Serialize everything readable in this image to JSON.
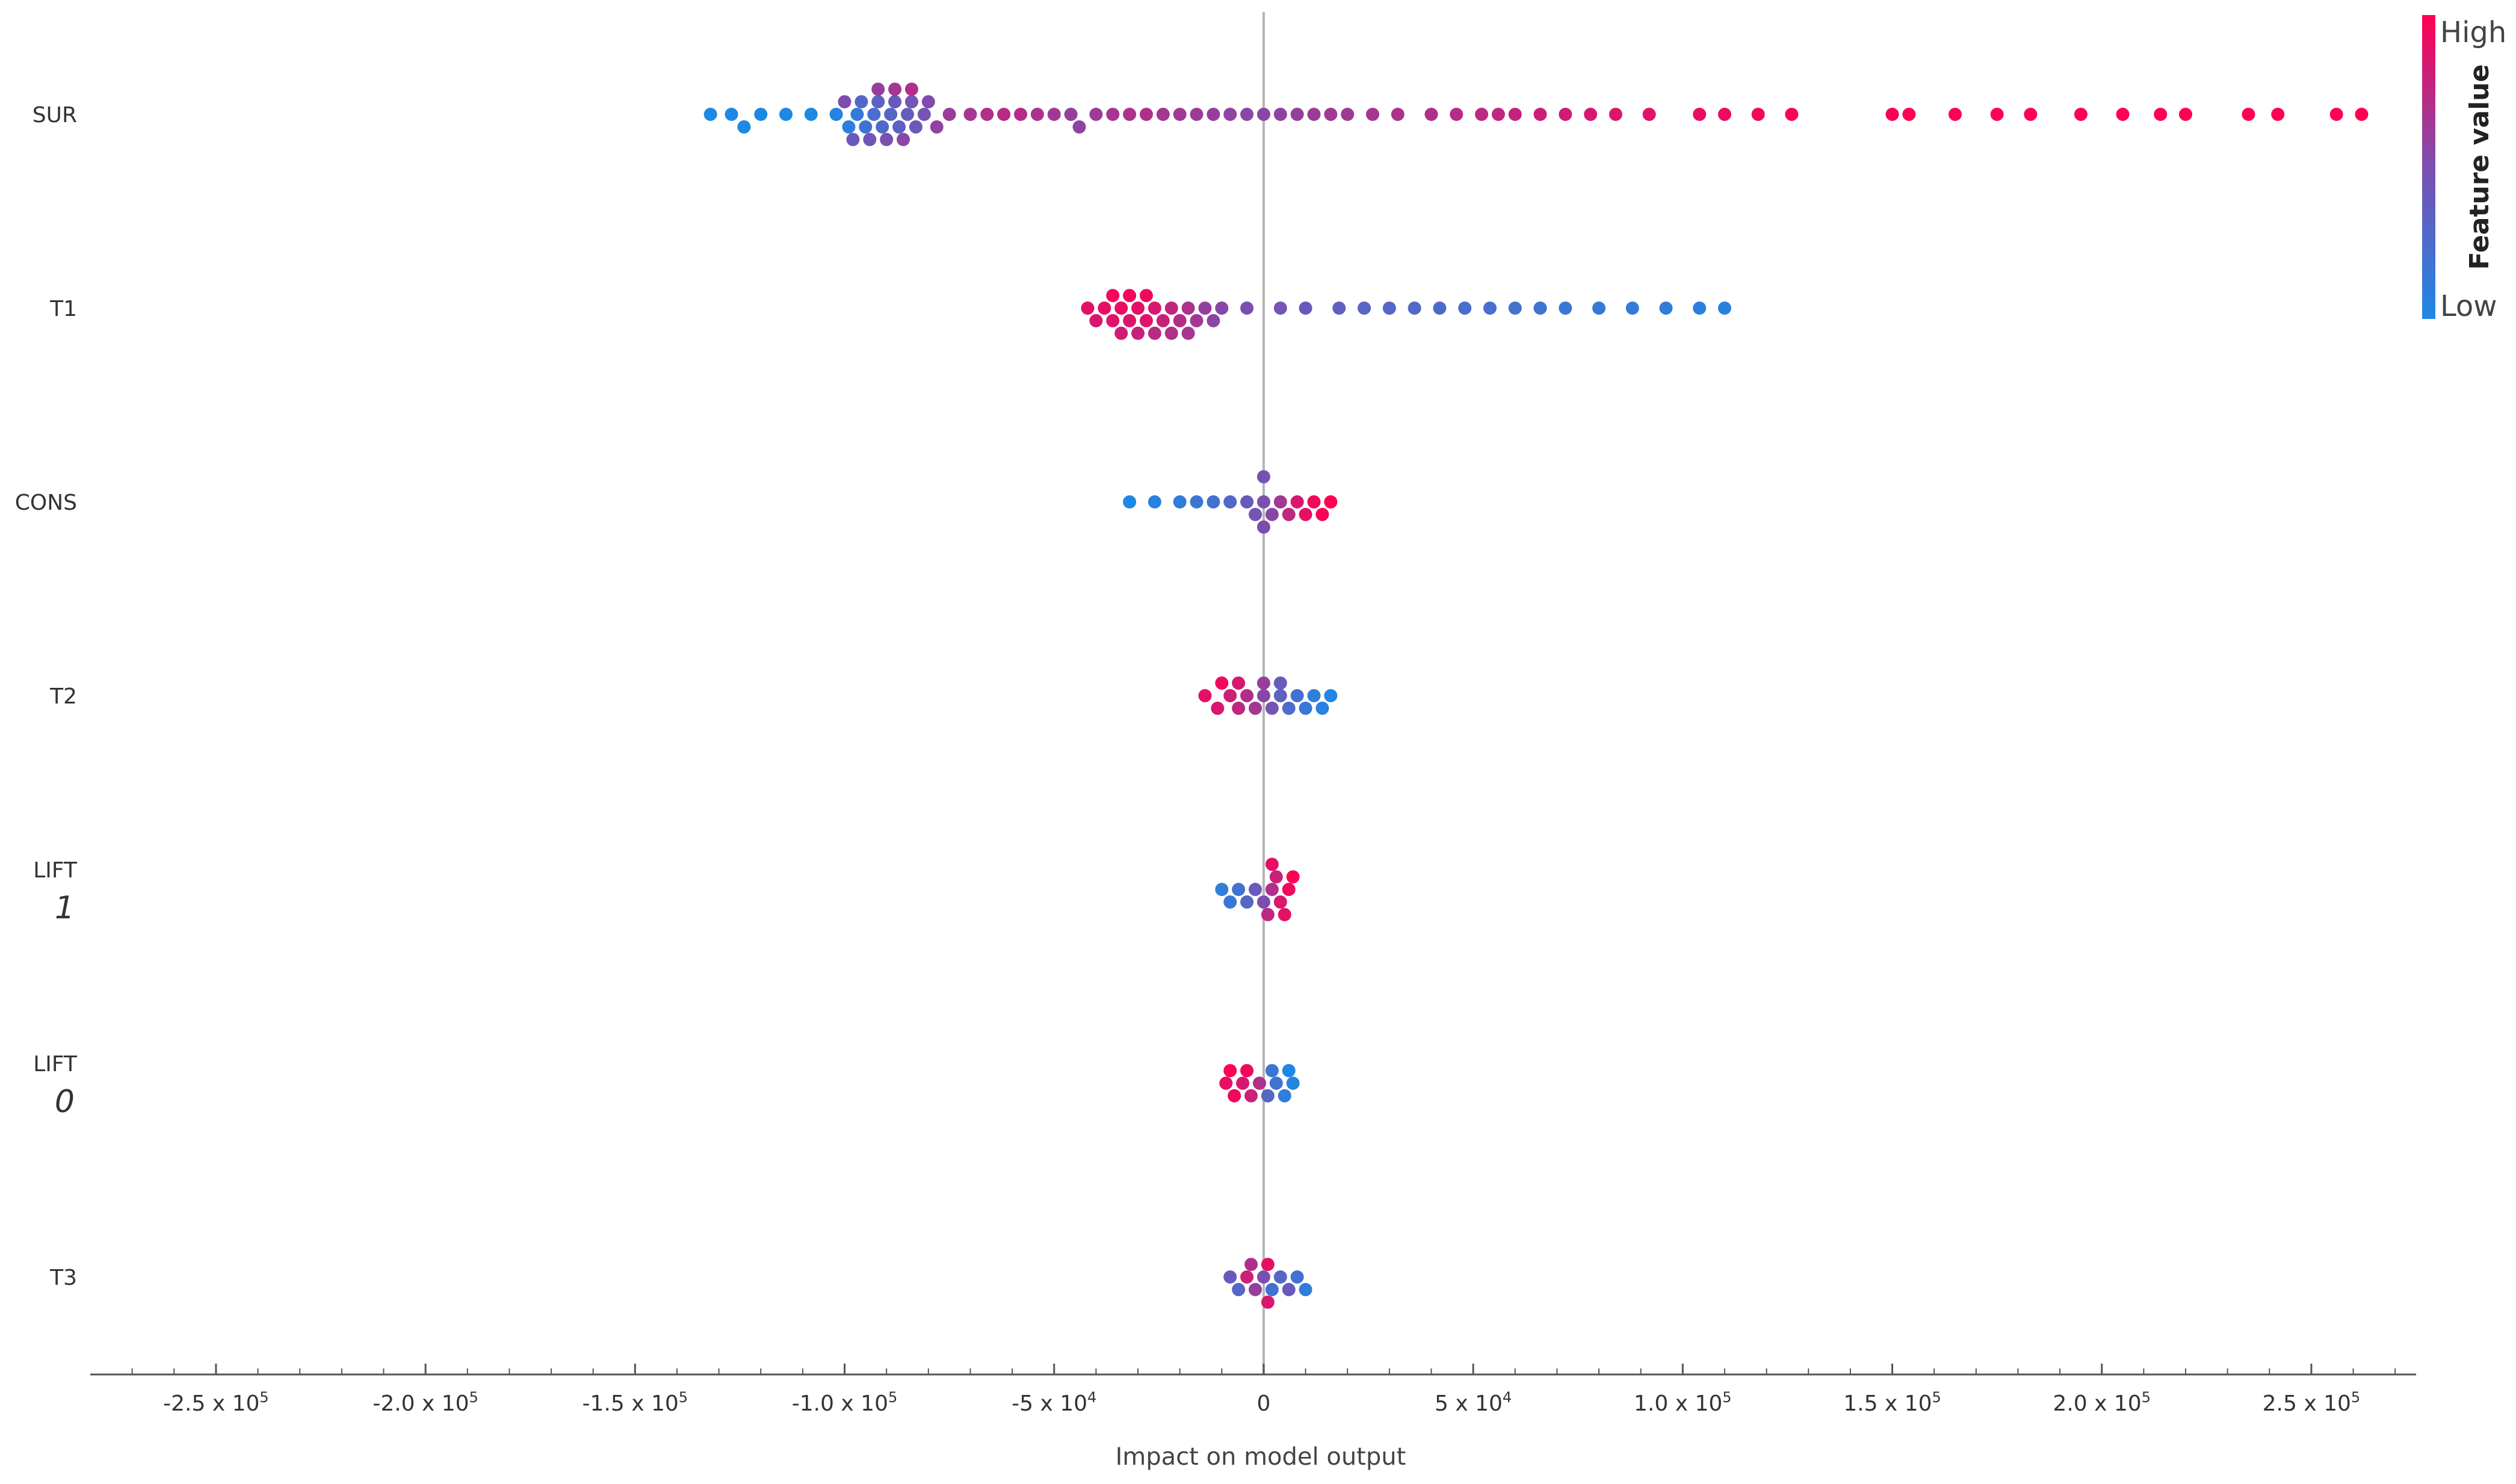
{
  "chart_data": {
    "type": "scatter",
    "subtype": "beeswarm",
    "title": "",
    "xlabel": "Impact on model output",
    "ylabel": "",
    "xlim": [
      -280000,
      275000
    ],
    "features": [
      "SUR",
      "T1",
      "CONS",
      "T2",
      "LIFT",
      "LIFT",
      "T3"
    ],
    "feature_sublabels": [
      "",
      "",
      "",
      "",
      "1",
      "0",
      ""
    ],
    "x_ticks": [
      {
        "value": -250000,
        "mantissa": "-2.5 x 10",
        "exp": "5"
      },
      {
        "value": -200000,
        "mantissa": "-2.0 x 10",
        "exp": "5"
      },
      {
        "value": -150000,
        "mantissa": "-1.5 x 10",
        "exp": "5"
      },
      {
        "value": -100000,
        "mantissa": "-1.0 x 10",
        "exp": "5"
      },
      {
        "value": -50000,
        "mantissa": "-5 x 10",
        "exp": "4"
      },
      {
        "value": 0,
        "mantissa": "0",
        "exp": ""
      },
      {
        "value": 50000,
        "mantissa": "5 x 10",
        "exp": "4"
      },
      {
        "value": 100000,
        "mantissa": "1.0 x 10",
        "exp": "5"
      },
      {
        "value": 150000,
        "mantissa": "1.5 x 10",
        "exp": "5"
      },
      {
        "value": 200000,
        "mantissa": "2.0 x 10",
        "exp": "5"
      },
      {
        "value": 250000,
        "mantissa": "2.5 x 10",
        "exp": "5"
      }
    ],
    "colorbar": {
      "label": "Feature value",
      "high_label": "High",
      "low_label": "Low",
      "low_color": "#1e88e5",
      "mid_color": "#7b4fb0",
      "high_color": "#ff0052"
    },
    "series": [
      {
        "feature_index": 0,
        "points": [
          [
            -132000,
            0.0
          ],
          [
            -127000,
            0.0
          ],
          [
            -124000,
            0.0
          ],
          [
            -120000,
            0.0
          ],
          [
            -114000,
            0.0
          ],
          [
            -108000,
            0.0
          ],
          [
            -102000,
            0.05
          ],
          [
            -99000,
            0.08
          ],
          [
            -97000,
            0.12
          ],
          [
            -95000,
            0.18
          ],
          [
            -93000,
            0.22
          ],
          [
            -91000,
            0.26
          ],
          [
            -89000,
            0.3
          ],
          [
            -87000,
            0.34
          ],
          [
            -85000,
            0.38
          ],
          [
            -83000,
            0.42
          ],
          [
            -81000,
            0.46
          ],
          [
            -96000,
            0.28
          ],
          [
            -92000,
            0.34
          ],
          [
            -88000,
            0.4
          ],
          [
            -84000,
            0.46
          ],
          [
            -80000,
            0.52
          ],
          [
            -94000,
            0.44
          ],
          [
            -90000,
            0.5
          ],
          [
            -86000,
            0.56
          ],
          [
            -98000,
            0.4
          ],
          [
            -100000,
            0.52
          ],
          [
            -92000,
            0.6
          ],
          [
            -88000,
            0.66
          ],
          [
            -84000,
            0.7
          ],
          [
            -78000,
            0.58
          ],
          [
            -75000,
            0.62
          ],
          [
            -70000,
            0.66
          ],
          [
            -66000,
            0.7
          ],
          [
            -62000,
            0.74
          ],
          [
            -58000,
            0.72
          ],
          [
            -54000,
            0.68
          ],
          [
            -50000,
            0.64
          ],
          [
            -46000,
            0.6
          ],
          [
            -44000,
            0.58
          ],
          [
            -40000,
            0.62
          ],
          [
            -36000,
            0.66
          ],
          [
            -32000,
            0.68
          ],
          [
            -28000,
            0.7
          ],
          [
            -24000,
            0.66
          ],
          [
            -20000,
            0.64
          ],
          [
            -16000,
            0.62
          ],
          [
            -12000,
            0.6
          ],
          [
            -8000,
            0.58
          ],
          [
            -4000,
            0.56
          ],
          [
            0,
            0.56
          ],
          [
            4000,
            0.58
          ],
          [
            8000,
            0.6
          ],
          [
            12000,
            0.62
          ],
          [
            16000,
            0.64
          ],
          [
            20000,
            0.64
          ],
          [
            26000,
            0.66
          ],
          [
            32000,
            0.68
          ],
          [
            40000,
            0.7
          ],
          [
            46000,
            0.72
          ],
          [
            52000,
            0.74
          ],
          [
            56000,
            0.76
          ],
          [
            60000,
            0.78
          ],
          [
            66000,
            0.8
          ],
          [
            72000,
            0.82
          ],
          [
            78000,
            0.84
          ],
          [
            84000,
            0.86
          ],
          [
            92000,
            0.88
          ],
          [
            104000,
            0.92
          ],
          [
            110000,
            0.93
          ],
          [
            118000,
            0.95
          ],
          [
            126000,
            0.97
          ],
          [
            150000,
            0.99
          ],
          [
            154000,
            1.0
          ],
          [
            165000,
            1.0
          ],
          [
            175000,
            1.0
          ],
          [
            183000,
            1.0
          ],
          [
            195000,
            1.0
          ],
          [
            205000,
            1.0
          ],
          [
            214000,
            1.0
          ],
          [
            220000,
            1.0
          ],
          [
            235000,
            1.0
          ],
          [
            242000,
            1.0
          ],
          [
            256000,
            1.0
          ],
          [
            262000,
            1.0
          ]
        ]
      },
      {
        "feature_index": 1,
        "points": [
          [
            -42000,
            0.9
          ],
          [
            -40000,
            0.85
          ],
          [
            -38000,
            0.9
          ],
          [
            -36000,
            0.88
          ],
          [
            -34000,
            0.92
          ],
          [
            -32000,
            0.86
          ],
          [
            -30000,
            0.9
          ],
          [
            -28000,
            0.88
          ],
          [
            -26000,
            0.84
          ],
          [
            -24000,
            0.8
          ],
          [
            -22000,
            0.76
          ],
          [
            -20000,
            0.72
          ],
          [
            -18000,
            0.68
          ],
          [
            -16000,
            0.64
          ],
          [
            -14000,
            0.6
          ],
          [
            -12000,
            0.56
          ],
          [
            -10000,
            0.54
          ],
          [
            -36000,
            0.96
          ],
          [
            -32000,
            0.95
          ],
          [
            -28000,
            0.94
          ],
          [
            -34000,
            0.82
          ],
          [
            -30000,
            0.78
          ],
          [
            -26000,
            0.74
          ],
          [
            -22000,
            0.7
          ],
          [
            -18000,
            0.66
          ],
          [
            -4000,
            0.5
          ],
          [
            4000,
            0.46
          ],
          [
            10000,
            0.4
          ],
          [
            18000,
            0.36
          ],
          [
            24000,
            0.32
          ],
          [
            30000,
            0.3
          ],
          [
            36000,
            0.28
          ],
          [
            42000,
            0.26
          ],
          [
            48000,
            0.24
          ],
          [
            54000,
            0.22
          ],
          [
            60000,
            0.2
          ],
          [
            66000,
            0.18
          ],
          [
            72000,
            0.16
          ],
          [
            80000,
            0.14
          ],
          [
            88000,
            0.12
          ],
          [
            96000,
            0.1
          ],
          [
            104000,
            0.08
          ],
          [
            110000,
            0.06
          ]
        ]
      },
      {
        "feature_index": 2,
        "points": [
          [
            -32000,
            0.0
          ],
          [
            -26000,
            0.05
          ],
          [
            -20000,
            0.1
          ],
          [
            -16000,
            0.15
          ],
          [
            -12000,
            0.2
          ],
          [
            -8000,
            0.3
          ],
          [
            -4000,
            0.4
          ],
          [
            -2000,
            0.45
          ],
          [
            0,
            0.5
          ],
          [
            0,
            0.52
          ],
          [
            0,
            0.48
          ],
          [
            2000,
            0.55
          ],
          [
            4000,
            0.65
          ],
          [
            6000,
            0.75
          ],
          [
            8000,
            0.85
          ],
          [
            10000,
            0.9
          ],
          [
            12000,
            0.95
          ],
          [
            14000,
            0.98
          ],
          [
            16000,
            1.0
          ]
        ]
      },
      {
        "feature_index": 3,
        "points": [
          [
            -14000,
            0.9
          ],
          [
            -11000,
            0.85
          ],
          [
            -8000,
            0.8
          ],
          [
            -6000,
            0.75
          ],
          [
            -4000,
            0.7
          ],
          [
            -2000,
            0.65
          ],
          [
            0,
            0.55
          ],
          [
            2000,
            0.45
          ],
          [
            4000,
            0.35
          ],
          [
            6000,
            0.25
          ],
          [
            8000,
            0.2
          ],
          [
            10000,
            0.15
          ],
          [
            12000,
            0.1
          ],
          [
            14000,
            0.05
          ],
          [
            16000,
            0.02
          ],
          [
            -10000,
            0.95
          ],
          [
            -6000,
            0.85
          ],
          [
            0,
            0.6
          ],
          [
            4000,
            0.4
          ]
        ]
      },
      {
        "feature_index": 4,
        "points": [
          [
            -10000,
            0.1
          ],
          [
            -8000,
            0.15
          ],
          [
            -6000,
            0.2
          ],
          [
            -4000,
            0.3
          ],
          [
            -2000,
            0.4
          ],
          [
            0,
            0.5
          ],
          [
            2000,
            0.7
          ],
          [
            3000,
            0.8
          ],
          [
            4000,
            0.85
          ],
          [
            5000,
            0.9
          ],
          [
            6000,
            0.95
          ],
          [
            7000,
            1.0
          ],
          [
            1000,
            0.75
          ],
          [
            2000,
            0.9
          ]
        ]
      },
      {
        "feature_index": 5,
        "points": [
          [
            -9000,
            0.9
          ],
          [
            -7000,
            0.95
          ],
          [
            -5000,
            0.85
          ],
          [
            -3000,
            0.8
          ],
          [
            -1000,
            0.7
          ],
          [
            1000,
            0.3
          ],
          [
            3000,
            0.2
          ],
          [
            5000,
            0.1
          ],
          [
            7000,
            0.05
          ],
          [
            -8000,
            1.0
          ],
          [
            -4000,
            0.95
          ],
          [
            2000,
            0.15
          ],
          [
            6000,
            0.0
          ]
        ]
      },
      {
        "feature_index": 6,
        "points": [
          [
            -8000,
            0.4
          ],
          [
            -6000,
            0.3
          ],
          [
            -4000,
            0.8
          ],
          [
            -2000,
            0.6
          ],
          [
            0,
            0.5
          ],
          [
            1000,
            0.9
          ],
          [
            2000,
            0.2
          ],
          [
            4000,
            0.3
          ],
          [
            6000,
            0.4
          ],
          [
            8000,
            0.2
          ],
          [
            10000,
            0.1
          ],
          [
            -3000,
            0.7
          ],
          [
            1000,
            0.85
          ]
        ]
      }
    ]
  }
}
